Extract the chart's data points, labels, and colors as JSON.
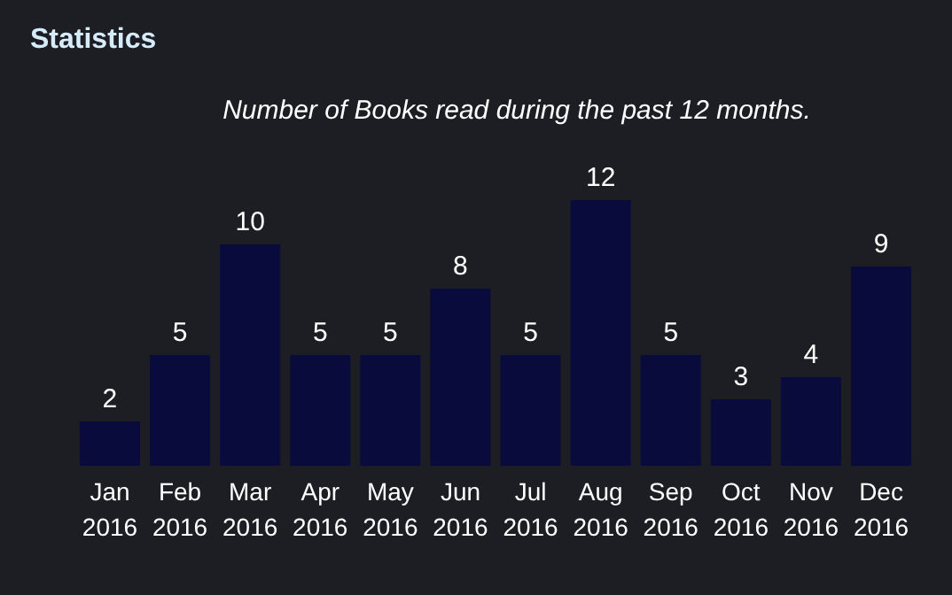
{
  "chart_data": {
    "type": "bar",
    "title": "Statistics",
    "subtitle": "Number of Books read during the past 12 months.",
    "categories": [
      "Jan 2016",
      "Feb 2016",
      "Mar 2016",
      "Apr 2016",
      "May 2016",
      "Jun 2016",
      "Jul 2016",
      "Aug 2016",
      "Sep 2016",
      "Oct 2016",
      "Nov 2016",
      "Dec 2016"
    ],
    "values": [
      2,
      5,
      10,
      5,
      5,
      8,
      5,
      12,
      5,
      3,
      4,
      9
    ],
    "color": "#0a0b3d",
    "data_labels": true,
    "tick_labels": "x",
    "grid": false
  }
}
